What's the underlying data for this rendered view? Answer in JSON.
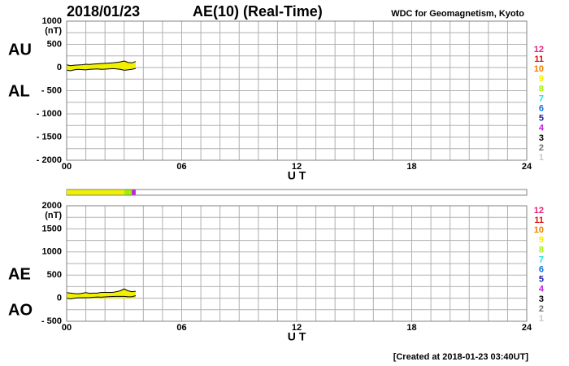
{
  "header": {
    "date": "2018/01/23",
    "title": "AE(10) (Real-Time)",
    "source": "WDC for Geomagnetism, Kyoto"
  },
  "footer": "[Created at 2018-01-23 03:40UT]",
  "station_legend": {
    "counts": [
      12,
      11,
      10,
      9,
      8,
      7,
      6,
      5,
      4,
      3,
      2,
      1
    ],
    "colors": [
      "#e8207a",
      "#e01010",
      "#f08000",
      "#f0f000",
      "#a0f000",
      "#20e0e0",
      "#1070e0",
      "#2020a0",
      "#c020e0",
      "#000000",
      "#707070",
      "#c8c8c8"
    ]
  },
  "coverage": {
    "bounds": [
      0,
      3.0,
      3.4,
      3.6
    ],
    "stations": [
      9,
      8,
      4
    ]
  },
  "chart_data": [
    {
      "type": "area",
      "unit": "(nT)",
      "xlabel": "U T",
      "xlim": [
        0,
        24
      ],
      "xticks": [
        {
          "value": 0,
          "label": "00"
        },
        {
          "value": 6,
          "label": "06"
        },
        12,
        18,
        24
      ],
      "xgrid": [
        0,
        1,
        2,
        3,
        4,
        5,
        6,
        7,
        8,
        9,
        10,
        11,
        12,
        13,
        14,
        15,
        16,
        17,
        18,
        19,
        20,
        21,
        22,
        23,
        24
      ],
      "ylim": [
        -2000,
        1000
      ],
      "yticks": [
        1000,
        500,
        0,
        {
          "value": -500,
          "label": "- 500"
        },
        {
          "value": -1000,
          "label": "- 1000"
        },
        {
          "value": -1500,
          "label": "- 1500"
        },
        {
          "value": -2000,
          "label": "- 2000"
        }
      ],
      "ygrid": [
        1000,
        750,
        500,
        250,
        0,
        -250,
        -500,
        -750,
        -1000,
        -1250,
        -1500,
        -1750,
        -2000
      ],
      "x": [
        0,
        0.2,
        0.4,
        0.6,
        0.8,
        1.0,
        1.2,
        1.4,
        1.6,
        1.8,
        2.0,
        2.2,
        2.4,
        2.6,
        2.8,
        3.0,
        3.2,
        3.4,
        3.6
      ],
      "series": [
        {
          "name": "AU",
          "color": "#f0f000",
          "values": [
            60,
            40,
            50,
            55,
            60,
            70,
            65,
            75,
            80,
            85,
            90,
            95,
            100,
            110,
            120,
            140,
            110,
            100,
            130
          ]
        },
        {
          "name": "AL",
          "color": "#f0f000",
          "values": [
            -60,
            -70,
            -50,
            -40,
            -45,
            -50,
            -40,
            -35,
            -30,
            -40,
            -35,
            -30,
            -25,
            -30,
            -40,
            -60,
            -50,
            -40,
            -20
          ]
        }
      ]
    },
    {
      "type": "area",
      "unit": "(nT)",
      "xlabel": "U T",
      "xlim": [
        0,
        24
      ],
      "xticks": [
        {
          "value": 0,
          "label": "00"
        },
        {
          "value": 6,
          "label": "06"
        },
        12,
        18,
        24
      ],
      "xgrid": [
        0,
        1,
        2,
        3,
        4,
        5,
        6,
        7,
        8,
        9,
        10,
        11,
        12,
        13,
        14,
        15,
        16,
        17,
        18,
        19,
        20,
        21,
        22,
        23,
        24
      ],
      "ylim": [
        -500,
        2000
      ],
      "yticks": [
        2000,
        1500,
        1000,
        500,
        0,
        {
          "value": -500,
          "label": "- 500"
        }
      ],
      "ygrid": [
        2000,
        1750,
        1500,
        1250,
        1000,
        750,
        500,
        250,
        0,
        -250,
        -500
      ],
      "x": [
        0,
        0.2,
        0.4,
        0.6,
        0.8,
        1.0,
        1.2,
        1.4,
        1.6,
        1.8,
        2.0,
        2.2,
        2.4,
        2.6,
        2.8,
        3.0,
        3.2,
        3.4,
        3.6
      ],
      "series": [
        {
          "name": "AE",
          "color": "#f0f000",
          "values": [
            120,
            110,
            100,
            95,
            105,
            120,
            105,
            110,
            110,
            125,
            125,
            125,
            125,
            140,
            160,
            200,
            160,
            140,
            150
          ]
        },
        {
          "name": "AO",
          "color": "#f0f000",
          "values": [
            0,
            -15,
            0,
            7.5,
            7.5,
            10,
            12.5,
            20,
            25,
            22.5,
            27.5,
            32.5,
            37.5,
            40,
            40,
            40,
            30,
            30,
            55
          ]
        }
      ]
    }
  ]
}
